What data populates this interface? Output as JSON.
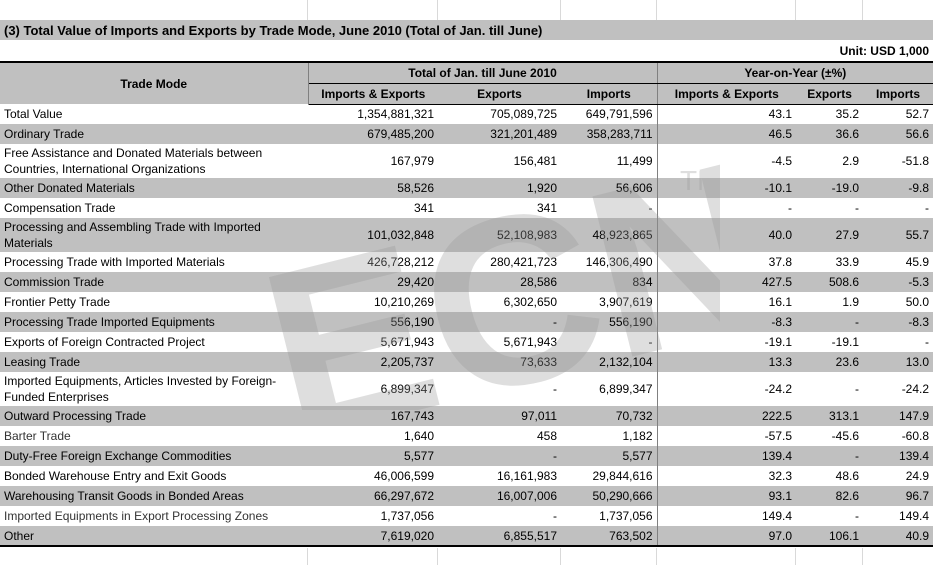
{
  "title": "(3) Total Value of Imports and Exports by Trade Mode, June 2010 (Total of Jan. till June)",
  "unit": "Unit: USD 1,000",
  "header": {
    "trade_mode": "Trade Mode",
    "group_total": "Total of Jan. till June 2010",
    "group_yoy": "Year-on-Year (±%)",
    "cols": [
      "Imports & Exports",
      "Exports",
      "Imports",
      "Imports & Exports",
      "Exports",
      "Imports"
    ]
  },
  "watermark": {
    "text": "ECN",
    "tm": "TM"
  },
  "rows": [
    {
      "name": "Total Value",
      "v": [
        "1,354,881,321",
        "705,089,725",
        "649,791,596",
        "43.1",
        "35.2",
        "52.7"
      ]
    },
    {
      "name": "Ordinary Trade",
      "v": [
        "679,485,200",
        "321,201,489",
        "358,283,711",
        "46.5",
        "36.6",
        "56.6"
      ]
    },
    {
      "name": "Free Assistance and Donated Materials between Countries, International Organizations",
      "v": [
        "167,979",
        "156,481",
        "11,499",
        "-4.5",
        "2.9",
        "-51.8"
      ]
    },
    {
      "name": "Other Donated Materials",
      "v": [
        "58,526",
        "1,920",
        "56,606",
        "-10.1",
        "-19.0",
        "-9.8"
      ]
    },
    {
      "name": "Compensation Trade",
      "v": [
        "341",
        "341",
        "-",
        "-",
        "-",
        "-"
      ]
    },
    {
      "name": "Processing and Assembling Trade with Imported Materials",
      "v": [
        "101,032,848",
        "52,108,983",
        "48,923,865",
        "40.0",
        "27.9",
        "55.7"
      ]
    },
    {
      "name": "Processing Trade with Imported Materials",
      "v": [
        "426,728,212",
        "280,421,723",
        "146,306,490",
        "37.8",
        "33.9",
        "45.9"
      ]
    },
    {
      "name": "Commission Trade",
      "v": [
        "29,420",
        "28,586",
        "834",
        "427.5",
        "508.6",
        "-5.3"
      ]
    },
    {
      "name": "Frontier Petty Trade",
      "v": [
        "10,210,269",
        "6,302,650",
        "3,907,619",
        "16.1",
        "1.9",
        "50.0"
      ]
    },
    {
      "name": "Processing Trade Imported Equipments",
      "v": [
        "556,190",
        "-",
        "556,190",
        "-8.3",
        "-",
        "-8.3"
      ]
    },
    {
      "name": "Exports of Foreign Contracted Project",
      "v": [
        "5,671,943",
        "5,671,943",
        "-",
        "-19.1",
        "-19.1",
        "-"
      ]
    },
    {
      "name": "Leasing Trade",
      "v": [
        "2,205,737",
        "73,633",
        "2,132,104",
        "13.3",
        "23.6",
        "13.0"
      ]
    },
    {
      "name": "Imported Equipments, Articles Invested by Foreign-Funded Enterprises",
      "v": [
        "6,899,347",
        "-",
        "6,899,347",
        "-24.2",
        "-",
        "-24.2"
      ]
    },
    {
      "name": "Outward Processing Trade",
      "v": [
        "167,743",
        "97,011",
        "70,732",
        "222.5",
        "313.1",
        "147.9"
      ]
    },
    {
      "name": "Barter Trade",
      "v": [
        "1,640",
        "458",
        "1,182",
        "-57.5",
        "-45.6",
        "-60.8"
      ]
    },
    {
      "name": "Duty-Free Foreign Exchange Commodities",
      "v": [
        "5,577",
        "-",
        "5,577",
        "139.4",
        "-",
        "139.4"
      ]
    },
    {
      "name": "Bonded Warehouse Entry and Exit Goods",
      "v": [
        "46,006,599",
        "16,161,983",
        "29,844,616",
        "32.3",
        "48.6",
        "24.9"
      ]
    },
    {
      "name": "Warehousing Transit Goods in Bonded Areas",
      "v": [
        "66,297,672",
        "16,007,006",
        "50,290,666",
        "93.1",
        "82.6",
        "96.7"
      ]
    },
    {
      "name": "Imported Equipments in Export Processing Zones",
      "v": [
        "1,737,056",
        "-",
        "1,737,056",
        "149.4",
        "-",
        "149.4"
      ]
    },
    {
      "name": "Other",
      "v": [
        "7,619,020",
        "6,855,517",
        "763,502",
        "97.0",
        "106.1",
        "40.9"
      ]
    }
  ]
}
